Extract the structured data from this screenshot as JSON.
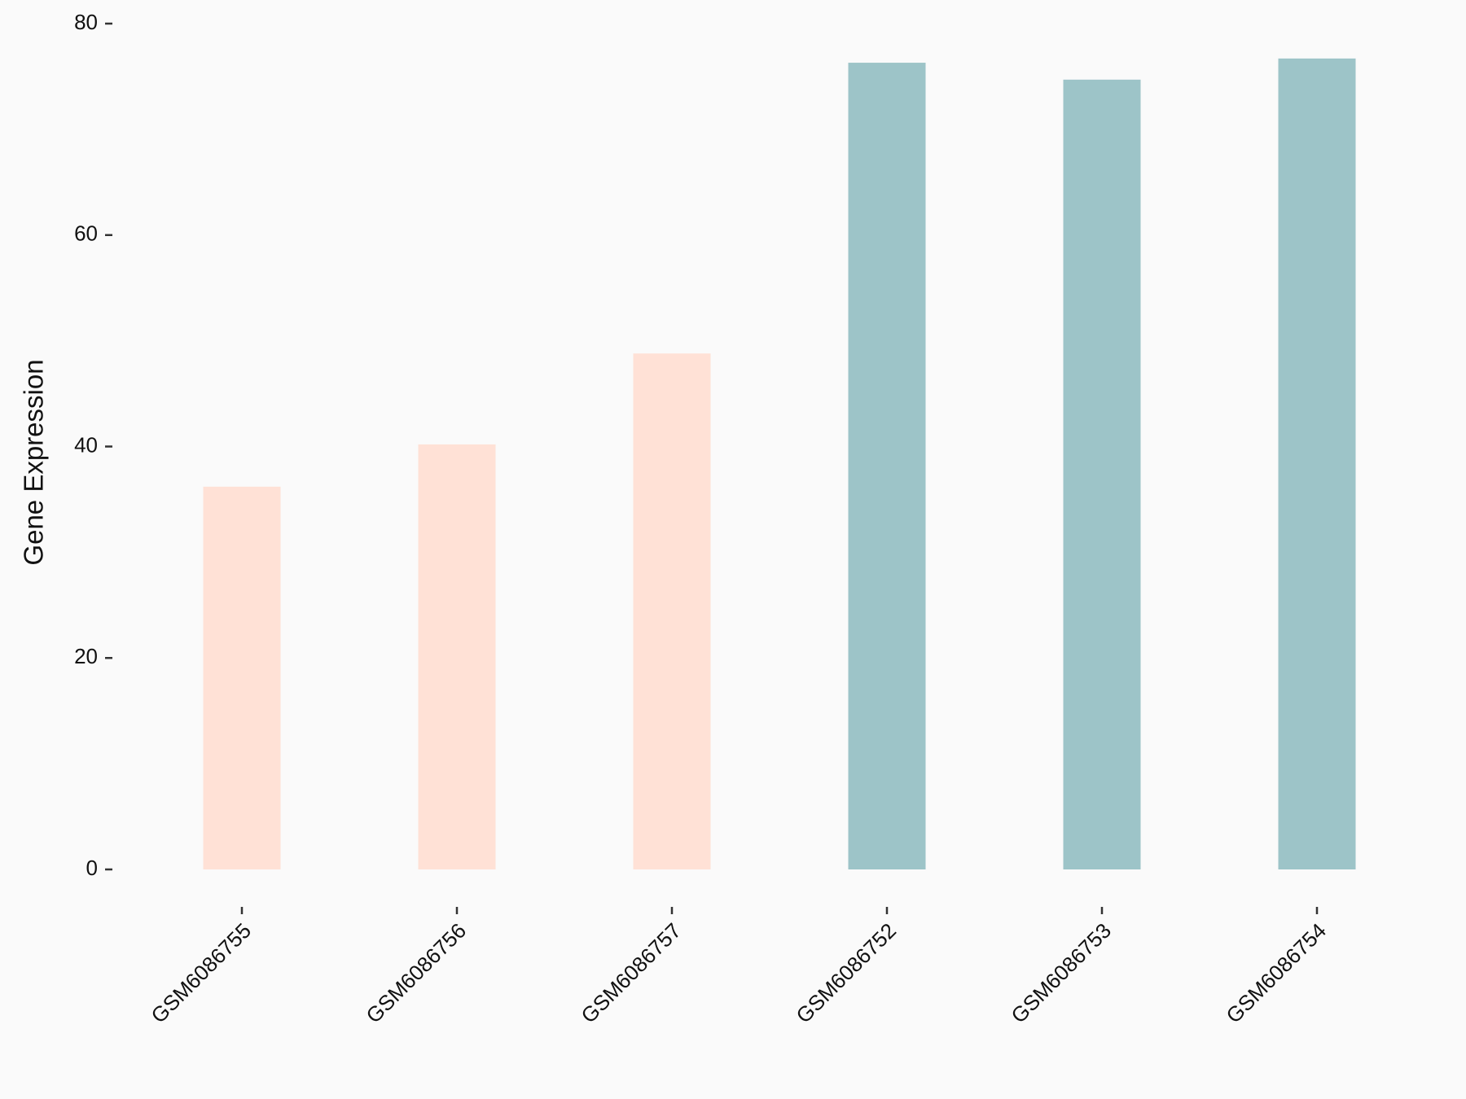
{
  "chart_data": {
    "type": "bar",
    "y_label": "Gene Expression",
    "categories": [
      "GSM6086755",
      "GSM6086756",
      "GSM6086757",
      "GSM6086752",
      "GSM6086753",
      "GSM6086754"
    ],
    "values": [
      36.2,
      40.2,
      48.8,
      76.3,
      74.7,
      76.7
    ],
    "colors": [
      "#ffe1d6",
      "#ffe1d6",
      "#ffe1d6",
      "#9dc4c8",
      "#9dc4c8",
      "#9dc4c8"
    ],
    "ylim": [
      0,
      80
    ],
    "yticks": [
      0,
      20,
      40,
      60,
      80
    ]
  }
}
